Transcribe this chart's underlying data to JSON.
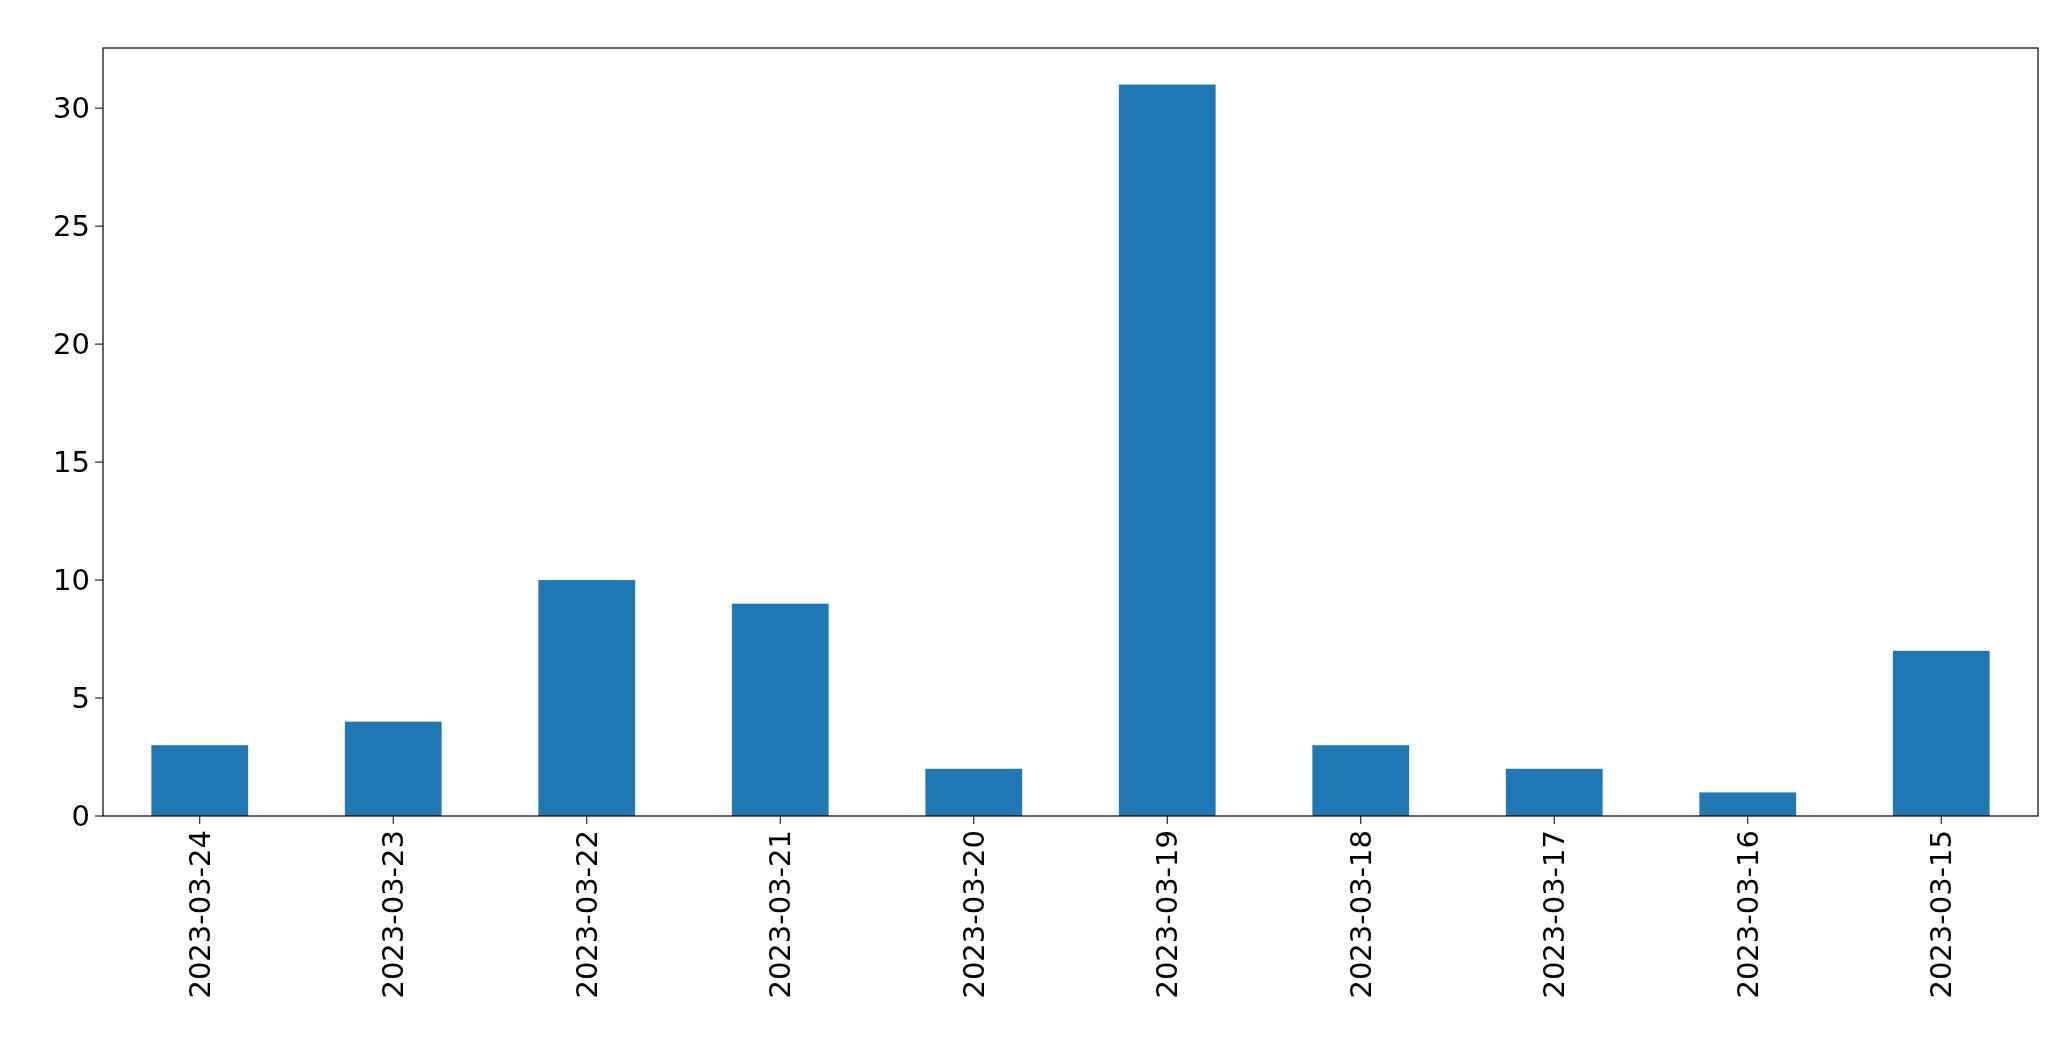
{
  "chart_data": {
    "type": "bar",
    "categories": [
      "2023-03-24",
      "2023-03-23",
      "2023-03-22",
      "2023-03-21",
      "2023-03-20",
      "2023-03-19",
      "2023-03-18",
      "2023-03-17",
      "2023-03-16",
      "2023-03-15"
    ],
    "values": [
      3,
      4,
      10,
      9,
      2,
      31,
      3,
      2,
      1,
      7
    ],
    "color": "#1f77b4",
    "ylim": [
      0,
      32.55
    ],
    "yticks": [
      0,
      5,
      10,
      15,
      20,
      25,
      30
    ],
    "grid": false
  }
}
